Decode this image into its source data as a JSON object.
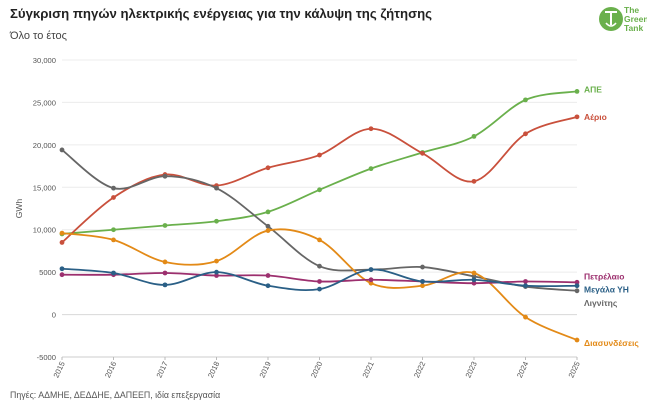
{
  "header": {
    "title": "Σύγκριση πηγών ηλεκτρικής ενέργειας για την κάλυψη της ζήτησης",
    "subtitle": "Όλο το έτος"
  },
  "footer": {
    "source": "Πηγές: ΑΔΜΗΕ, ΔΕΔΔΗΕ, ΔΑΠΕΕΠ, ιδία επεξεργασία"
  },
  "logo": {
    "line1": "The",
    "line2": "Green",
    "line3": "Tank",
    "color": "#6ab04c"
  },
  "chart_data": {
    "type": "line",
    "title": "Σύγκριση πηγών ηλεκτρικής ενέργειας για την κάλυψη της ζήτησης",
    "subtitle": "Όλο το έτος",
    "xlabel": "",
    "ylabel": "GWh",
    "ylim": [
      -5000,
      30000
    ],
    "yticks": [
      -5000,
      0,
      5000,
      10000,
      15000,
      20000,
      25000,
      30000
    ],
    "ytick_labels": [
      "-5000",
      "0",
      "5000",
      "10,000",
      "15,000",
      "20,000",
      "25,000",
      "30,000"
    ],
    "categories": [
      "2015",
      "2016",
      "2017",
      "2018",
      "2019",
      "2020",
      "2021",
      "2022",
      "2023",
      "2024",
      "2025"
    ],
    "grid": true,
    "series": [
      {
        "name": "ΑΠΕ",
        "color": "#6ab04c",
        "values": [
          9500,
          10000,
          10500,
          11000,
          12100,
          14700,
          17200,
          19100,
          21000,
          25300,
          26300
        ]
      },
      {
        "name": "Αέριο",
        "color": "#c9503c",
        "values": [
          8500,
          13800,
          16500,
          15200,
          17300,
          18800,
          21900,
          19000,
          15700,
          21300,
          23300
        ]
      },
      {
        "name": "Λιγνίτης",
        "color": "#666666",
        "values": [
          19400,
          14900,
          16300,
          14900,
          10400,
          5700,
          5300,
          5600,
          4500,
          3300,
          2800
        ]
      },
      {
        "name": "Διασυνδέσεις",
        "color": "#e38a17",
        "values": [
          9600,
          8800,
          6200,
          6300,
          9900,
          8800,
          3700,
          3400,
          4900,
          -300,
          -3000
        ]
      },
      {
        "name": "Πετρέλαιο",
        "color": "#9c2f6e",
        "values": [
          4700,
          4700,
          4900,
          4600,
          4600,
          3900,
          4100,
          3900,
          3700,
          3900,
          3800
        ]
      },
      {
        "name": "Μεγάλα ΥΗ",
        "color": "#2a5f86",
        "values": [
          5400,
          4900,
          3500,
          5000,
          3400,
          3000,
          5300,
          3900,
          4100,
          3400,
          3400
        ]
      }
    ]
  }
}
